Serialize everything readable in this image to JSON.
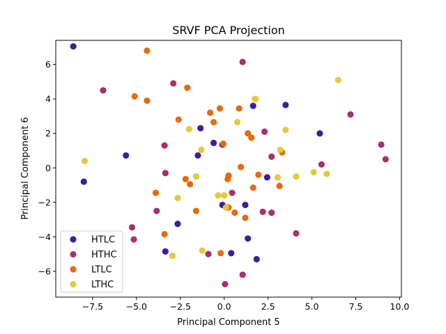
{
  "chart_data": {
    "type": "scatter",
    "title": "SRVF PCA Projection",
    "xlabel": "Principal Component 5",
    "ylabel": "Principal Component 6",
    "xlim": [
      -9.6,
      10.1
    ],
    "ylim": [
      -7.5,
      7.4
    ],
    "xticks": [
      -7.5,
      -5.0,
      -2.5,
      0.0,
      2.5,
      5.0,
      7.5,
      10.0
    ],
    "xtick_labels": [
      "−7.5",
      "−5.0",
      "−2.5",
      "0.0",
      "2.5",
      "5.0",
      "7.5",
      "10.0"
    ],
    "yticks": [
      -6,
      -4,
      -2,
      0,
      2,
      4,
      6
    ],
    "ytick_labels": [
      "−6",
      "−4",
      "−2",
      "0",
      "2",
      "4",
      "6"
    ],
    "grid": false,
    "legend_position": "lower-left",
    "series": [
      {
        "name": "HTLC",
        "color": "#3b1f9c",
        "points": [
          [
            -8.6,
            7.05
          ],
          [
            -8.0,
            -0.8
          ],
          [
            -5.6,
            0.72
          ],
          [
            -3.35,
            -4.85
          ],
          [
            -2.65,
            -3.25
          ],
          [
            -1.5,
            0.72
          ],
          [
            -1.35,
            2.3
          ],
          [
            -0.6,
            1.45
          ],
          [
            -0.1,
            1.35
          ],
          [
            -0.1,
            -2.15
          ],
          [
            0.15,
            -2.3
          ],
          [
            0.4,
            -4.95
          ],
          [
            1.2,
            -2.15
          ],
          [
            1.35,
            -4.1
          ],
          [
            1.65,
            3.6
          ],
          [
            1.85,
            -5.3
          ],
          [
            2.45,
            -0.55
          ],
          [
            3.5,
            3.65
          ],
          [
            5.45,
            2.0
          ]
        ]
      },
      {
        "name": "HTHC",
        "color": "#a8306b",
        "points": [
          [
            -6.9,
            4.5
          ],
          [
            -5.25,
            -3.45
          ],
          [
            -5.15,
            -4.15
          ],
          [
            -3.85,
            -2.5
          ],
          [
            -3.4,
            1.3
          ],
          [
            -3.35,
            -0.3
          ],
          [
            -2.9,
            4.9
          ],
          [
            -0.9,
            -5.0
          ],
          [
            0.05,
            -6.75
          ],
          [
            0.45,
            -1.45
          ],
          [
            1.05,
            6.15
          ],
          [
            1.05,
            -6.2
          ],
          [
            2.2,
            -2.55
          ],
          [
            2.3,
            2.1
          ],
          [
            2.7,
            0.65
          ],
          [
            2.7,
            -2.6
          ],
          [
            4.1,
            -3.8
          ],
          [
            5.55,
            0.2
          ],
          [
            7.2,
            3.1
          ],
          [
            8.95,
            1.35
          ],
          [
            9.2,
            0.5
          ]
        ]
      },
      {
        "name": "LTLC",
        "color": "#e66a0e",
        "points": [
          [
            -5.1,
            4.15
          ],
          [
            -4.4,
            6.8
          ],
          [
            -4.4,
            3.9
          ],
          [
            -3.9,
            -1.45
          ],
          [
            -3.4,
            -3.85
          ],
          [
            -2.6,
            2.8
          ],
          [
            -2.2,
            -0.65
          ],
          [
            -2.1,
            4.65
          ],
          [
            -1.95,
            -0.95
          ],
          [
            -1.6,
            -2.5
          ],
          [
            -0.8,
            3.2
          ],
          [
            -0.6,
            2.65
          ],
          [
            -0.25,
            3.45
          ],
          [
            -0.2,
            -4.95
          ],
          [
            -0.05,
            1.4
          ],
          [
            0.2,
            -0.65
          ],
          [
            0.25,
            -0.45
          ],
          [
            0.25,
            -2.3
          ],
          [
            0.6,
            -2.6
          ],
          [
            0.85,
            3.45
          ],
          [
            0.95,
            0.05
          ],
          [
            1.2,
            -2.9
          ],
          [
            1.35,
            2.0
          ],
          [
            1.55,
            1.75
          ],
          [
            1.65,
            -1.15
          ],
          [
            1.95,
            -0.4
          ],
          [
            3.15,
            -1.05
          ],
          [
            3.3,
            0.9
          ]
        ]
      },
      {
        "name": "LTHC",
        "color": "#e5c93a",
        "points": [
          [
            -7.95,
            0.4
          ],
          [
            -2.95,
            -5.1
          ],
          [
            -2.65,
            -1.75
          ],
          [
            -2.0,
            2.25
          ],
          [
            -1.6,
            -0.5
          ],
          [
            -1.3,
            1.05
          ],
          [
            -1.25,
            -4.8
          ],
          [
            -0.35,
            -1.6
          ],
          [
            0.0,
            -1.6
          ],
          [
            0.1,
            -2.3
          ],
          [
            0.75,
            2.65
          ],
          [
            1.75,
            4.0
          ],
          [
            1.8,
            4.0
          ],
          [
            3.05,
            -0.55
          ],
          [
            3.2,
            1.05
          ],
          [
            3.5,
            2.2
          ],
          [
            4.1,
            -0.5
          ],
          [
            5.1,
            -0.25
          ],
          [
            5.85,
            -0.35
          ],
          [
            6.5,
            5.1
          ]
        ]
      }
    ]
  }
}
